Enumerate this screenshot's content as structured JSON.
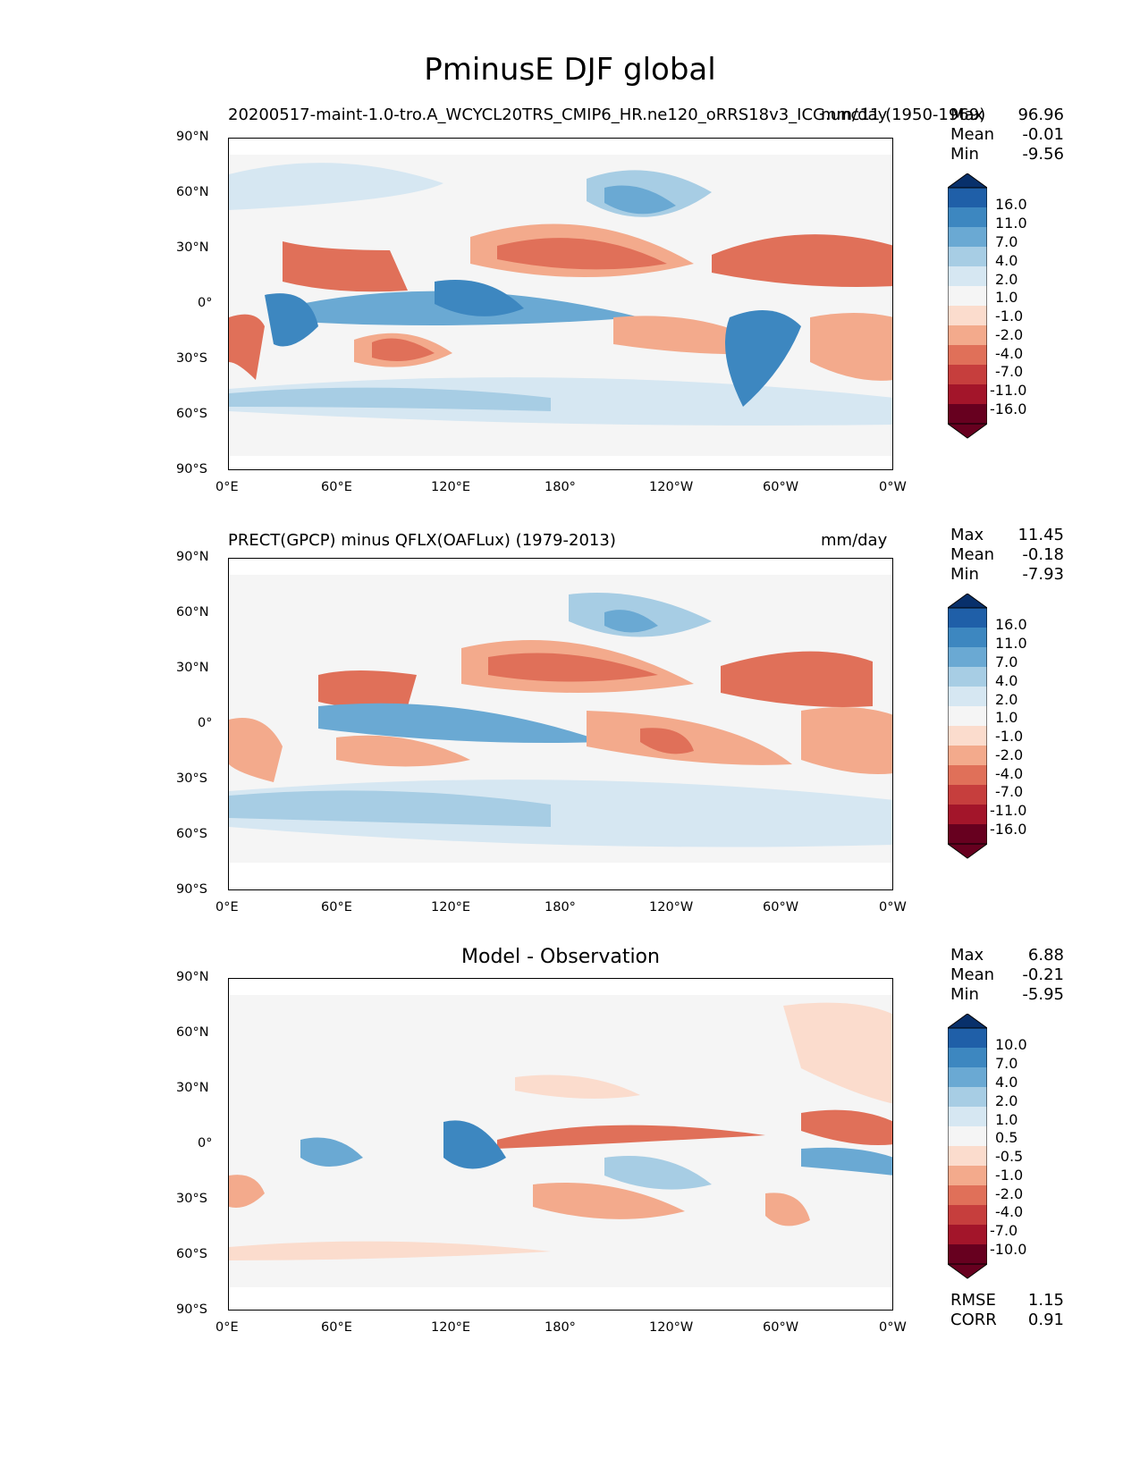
{
  "figure": {
    "title": "PminusE DJF global"
  },
  "chart_data": [
    {
      "type": "heatmap",
      "panel": "test",
      "title_left": "20200517-maint-1.0-tro.A_WCYCL20TRS_CMIP6_HR.ne120_oRRS18v3_ICG.unc11 (1950-1969)",
      "title_right": "mm/day",
      "xlim": [
        0,
        360
      ],
      "ylim": [
        -90,
        90
      ],
      "x_ticks": [
        "0°E",
        "60°E",
        "120°E",
        "180°",
        "120°W",
        "60°W",
        "0°W"
      ],
      "y_ticks": [
        "90°N",
        "60°N",
        "30°N",
        "0°",
        "30°S",
        "60°S",
        "90°S"
      ],
      "stats": {
        "Max": "96.96",
        "Mean": "-0.01",
        "Min": "-9.56"
      },
      "levels": [
        "16.0",
        "11.0",
        "7.0",
        "4.0",
        "2.0",
        "1.0",
        "-1.0",
        "-2.0",
        "-4.0",
        "-7.0",
        "-11.0",
        "-16.0"
      ],
      "colormap": "RdBu"
    },
    {
      "type": "heatmap",
      "panel": "reference",
      "title_left": "PRECT(GPCP) minus QFLX(OAFLux) (1979-2013)",
      "title_right": "mm/day",
      "xlim": [
        0,
        360
      ],
      "ylim": [
        -90,
        90
      ],
      "x_ticks": [
        "0°E",
        "60°E",
        "120°E",
        "180°",
        "120°W",
        "60°W",
        "0°W"
      ],
      "y_ticks": [
        "90°N",
        "60°N",
        "30°N",
        "0°",
        "30°S",
        "60°S",
        "90°S"
      ],
      "stats": {
        "Max": "11.45",
        "Mean": "-0.18",
        "Min": "-7.93"
      },
      "levels": [
        "16.0",
        "11.0",
        "7.0",
        "4.0",
        "2.0",
        "1.0",
        "-1.0",
        "-2.0",
        "-4.0",
        "-7.0",
        "-11.0",
        "-16.0"
      ],
      "colormap": "RdBu"
    },
    {
      "type": "heatmap",
      "panel": "difference",
      "title_center": "Model - Observation",
      "xlim": [
        0,
        360
      ],
      "ylim": [
        -90,
        90
      ],
      "x_ticks": [
        "0°E",
        "60°E",
        "120°E",
        "180°",
        "120°W",
        "60°W",
        "0°W"
      ],
      "y_ticks": [
        "90°N",
        "60°N",
        "30°N",
        "0°",
        "30°S",
        "60°S",
        "90°S"
      ],
      "stats": {
        "Max": "6.88",
        "Mean": "-0.21",
        "Min": "-5.95"
      },
      "levels": [
        "10.0",
        "7.0",
        "4.0",
        "2.0",
        "1.0",
        "0.5",
        "-0.5",
        "-1.0",
        "-2.0",
        "-4.0",
        "-7.0",
        "-10.0"
      ],
      "colormap": "RdBu",
      "metrics": {
        "RMSE": "1.15",
        "CORR": "0.91"
      }
    }
  ],
  "colors": {
    "bins": [
      "#08306b",
      "#1f5fa8",
      "#3d87c0",
      "#6aa9d3",
      "#a7cde4",
      "#d6e7f2",
      "#f5f5f5",
      "#fbdccd",
      "#f3aa8c",
      "#e07059",
      "#c63e3d",
      "#a3152a",
      "#67001f"
    ]
  }
}
